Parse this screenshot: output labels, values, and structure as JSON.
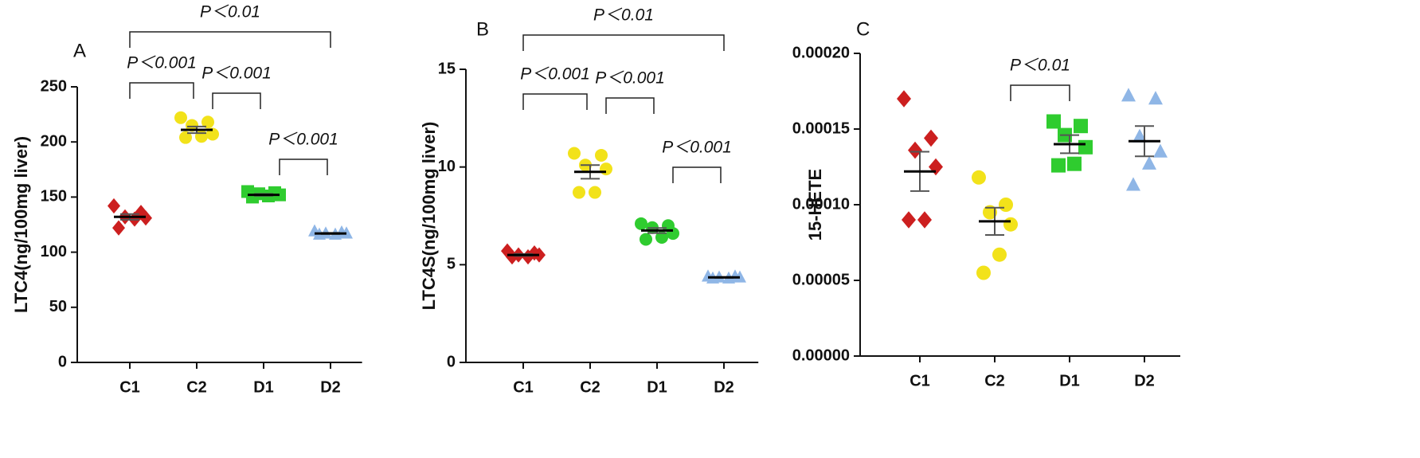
{
  "chart_data": [
    {
      "type": "dot",
      "panel": "A",
      "ylabel": "LTC4(ng/100mg liver)",
      "categories": [
        "C1",
        "C2",
        "D1",
        "D2"
      ],
      "colors": [
        "#cc1f1f",
        "#f2e21a",
        "#2fcc2f",
        "#8fb6e6"
      ],
      "markers": [
        "diamond",
        "circle",
        "square",
        "triangle"
      ],
      "values": [
        [
          142,
          136,
          132,
          131,
          130,
          122
        ],
        [
          222,
          218,
          215,
          207,
          205,
          204
        ],
        [
          155,
          154,
          153,
          152,
          151,
          150
        ],
        [
          119,
          118,
          117,
          117,
          116,
          116
        ]
      ],
      "mean": [
        132,
        211,
        152,
        117
      ],
      "sem": [
        2.6,
        3,
        0.8,
        0.5
      ],
      "ylim": [
        0,
        250
      ],
      "yticks": [
        0,
        50,
        100,
        150,
        200,
        250
      ],
      "brackets": [
        {
          "from": 0,
          "to": 3,
          "label": "P＜0.01"
        },
        {
          "from": 0,
          "to": 1,
          "label": "P＜0.001"
        },
        {
          "from": 1,
          "to": 2,
          "label": "P＜0.001"
        },
        {
          "from": 2,
          "to": 3,
          "label": "P＜0.001"
        }
      ]
    },
    {
      "type": "dot",
      "panel": "B",
      "ylabel": "LTC4S(ng/100mg liver)",
      "categories": [
        "C1",
        "C2",
        "D1",
        "D2"
      ],
      "colors": [
        "#cc1f1f",
        "#f2e21a",
        "#2fcc2f",
        "#8fb6e6"
      ],
      "markers": [
        "diamond",
        "circle",
        "circle",
        "triangle"
      ],
      "values": [
        [
          5.7,
          5.6,
          5.5,
          5.5,
          5.4,
          5.4
        ],
        [
          10.7,
          10.6,
          10.1,
          9.9,
          8.7,
          8.7
        ],
        [
          7.1,
          7.0,
          6.9,
          6.6,
          6.4,
          6.3
        ],
        [
          4.4,
          4.4,
          4.35,
          4.35,
          4.3,
          4.3
        ]
      ],
      "mean": [
        5.5,
        9.75,
        6.75,
        4.35
      ],
      "sem": [
        0.05,
        0.35,
        0.13,
        0.02
      ],
      "ylim": [
        0,
        15
      ],
      "yticks": [
        0,
        5,
        10,
        15
      ],
      "brackets": [
        {
          "from": 0,
          "to": 3,
          "label": "P＜0.01"
        },
        {
          "from": 0,
          "to": 1,
          "label": "P＜0.001"
        },
        {
          "from": 1,
          "to": 2,
          "label": "P＜0.001"
        },
        {
          "from": 2,
          "to": 3,
          "label": "P＜0.001"
        }
      ]
    },
    {
      "type": "dot",
      "panel": "C",
      "ylabel": "15-HETE",
      "categories": [
        "C1",
        "C2",
        "D1",
        "D2"
      ],
      "colors": [
        "#cc1f1f",
        "#f2e21a",
        "#2fcc2f",
        "#8fb6e6"
      ],
      "markers": [
        "diamond",
        "circle",
        "square",
        "triangle"
      ],
      "values": [
        [
          0.00017,
          0.000144,
          0.000136,
          0.000125,
          9e-05,
          9e-05
        ],
        [
          0.000118,
          0.0001,
          9.5e-05,
          8.7e-05,
          6.7e-05,
          5.5e-05
        ],
        [
          0.000155,
          0.000152,
          0.000146,
          0.000138,
          0.000127,
          0.000126
        ],
        [
          0.000172,
          0.00017,
          0.000145,
          0.000135,
          0.000127,
          0.000113
        ]
      ],
      "mean": [
        0.000122,
        8.9e-05,
        0.00014,
        0.000142
      ],
      "sem": [
        1.3e-05,
        9e-06,
        6e-06,
        1e-05
      ],
      "ylim": [
        0,
        0.0002
      ],
      "yticks": [
        {
          "value": 0,
          "label": "0.00000"
        },
        {
          "value": 5e-05,
          "label": "0.00005"
        },
        {
          "value": 0.0001,
          "label": "0.00010"
        },
        {
          "value": 0.00015,
          "label": "0.00015"
        },
        {
          "value": 0.0002,
          "label": "0.00020"
        }
      ],
      "brackets": [
        {
          "from": 1,
          "to": 2,
          "label": "P＜0.01"
        }
      ]
    }
  ]
}
